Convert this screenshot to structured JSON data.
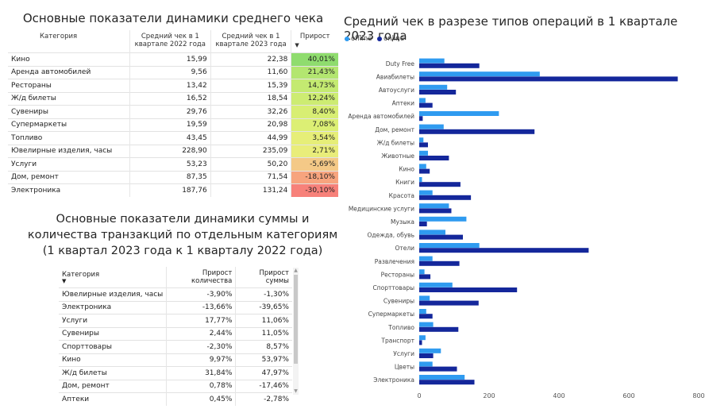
{
  "table1": {
    "title": "Основные показатели динамики среднего чека",
    "headers": [
      "Категория",
      "Средний чек в 1 квартале 2022 года",
      "Средний чек в 1 квартале 2023 года",
      "Прирост"
    ],
    "rows": [
      {
        "cat": "Кино",
        "v2022": "15,99",
        "v2023": "22,38",
        "growth": "40,01%",
        "color": "#8fdc6e"
      },
      {
        "cat": "Аренда автомобилей",
        "v2022": "9,56",
        "v2023": "11,60",
        "growth": "21,43%",
        "color": "#b3e670"
      },
      {
        "cat": "Рестораны",
        "v2022": "13,42",
        "v2023": "15,39",
        "growth": "14,73%",
        "color": "#c4ea71"
      },
      {
        "cat": "Ж/д билеты",
        "v2022": "16,52",
        "v2023": "18,54",
        "growth": "12,24%",
        "color": "#cdec72"
      },
      {
        "cat": "Сувениры",
        "v2022": "29,76",
        "v2023": "32,26",
        "growth": "8,40%",
        "color": "#d8ee73"
      },
      {
        "cat": "Супермаркеты",
        "v2022": "19,59",
        "v2023": "20,98",
        "growth": "7,08%",
        "color": "#dcef74"
      },
      {
        "cat": "Топливо",
        "v2022": "43,45",
        "v2023": "44,99",
        "growth": "3,54%",
        "color": "#e6ee78"
      },
      {
        "cat": "Ювелирные изделия, часы",
        "v2022": "228,90",
        "v2023": "235,09",
        "growth": "2,71%",
        "color": "#e9ed7a"
      },
      {
        "cat": "Услуги",
        "v2022": "53,23",
        "v2023": "50,20",
        "growth": "-5,69%",
        "color": "#f4c987"
      },
      {
        "cat": "Дом, ремонт",
        "v2022": "87,35",
        "v2023": "71,54",
        "growth": "-18,10%",
        "color": "#f7a47e"
      },
      {
        "cat": "Электроника",
        "v2022": "187,76",
        "v2023": "131,24",
        "growth": "-30,10%",
        "color": "#f7817a"
      }
    ]
  },
  "table2": {
    "title_lines": [
      "Основные показатели динамики суммы и",
      "количества транзакций по отдельным категориям",
      "(1 квартал 2023 года к 1 кварталу 2022 года)"
    ],
    "headers": [
      "Категория",
      "Прирост количества",
      "Прирост суммы"
    ],
    "rows": [
      {
        "cat": "Ювелирные изделия, часы",
        "count": "-3,90%",
        "sum": "-1,30%"
      },
      {
        "cat": "Электроника",
        "count": "-13,66%",
        "sum": "-39,65%"
      },
      {
        "cat": "Услуги",
        "count": "17,77%",
        "sum": "11,06%"
      },
      {
        "cat": "Сувениры",
        "count": "2,44%",
        "sum": "11,05%"
      },
      {
        "cat": "Спорттовары",
        "count": "-2,30%",
        "sum": "8,57%"
      },
      {
        "cat": "Кино",
        "count": "9,97%",
        "sum": "53,97%"
      },
      {
        "cat": "Ж/д билеты",
        "count": "31,84%",
        "sum": "47,97%"
      },
      {
        "cat": "Дом, ремонт",
        "count": "0,78%",
        "sum": "-17,46%"
      },
      {
        "cat": "Аптеки",
        "count": "0,45%",
        "sum": "-2,78%"
      }
    ]
  },
  "chart_data": {
    "type": "bar",
    "orientation": "horizontal",
    "title": "Средний чек в разрезе типов операций в 1 квартале 2023 года",
    "legend_position": "top-left",
    "categories": [
      "Duty Free",
      "Авиабилеты",
      "Автоуслуги",
      "Аптеки",
      "Аренда автомобилей",
      "Дом, ремонт",
      "Ж/д билеты",
      "Животные",
      "Кино",
      "Книги",
      "Красота",
      "Медицинские услуги",
      "Музыка",
      "Одежда, обувь",
      "Отели",
      "Развлечения",
      "Рестораны",
      "Спорттовары",
      "Сувениры",
      "Супермаркеты",
      "Топливо",
      "Транспорт",
      "Услуги",
      "Цветы",
      "Электроника"
    ],
    "series": [
      {
        "name": "offline",
        "color": "#2f9bf0",
        "values": [
          72,
          345,
          80,
          18,
          228,
          70,
          12,
          25,
          20,
          8,
          38,
          85,
          135,
          75,
          172,
          38,
          15,
          95,
          30,
          20,
          40,
          18,
          62,
          38,
          130
        ]
      },
      {
        "name": "online",
        "color": "#14279b",
        "values": [
          172,
          740,
          105,
          38,
          10,
          330,
          25,
          85,
          30,
          118,
          148,
          92,
          22,
          125,
          485,
          115,
          32,
          280,
          170,
          38,
          112,
          8,
          40,
          108,
          158
        ]
      }
    ],
    "xticks": [
      0,
      200,
      400,
      600,
      800
    ],
    "xlim": [
      0,
      800
    ]
  }
}
